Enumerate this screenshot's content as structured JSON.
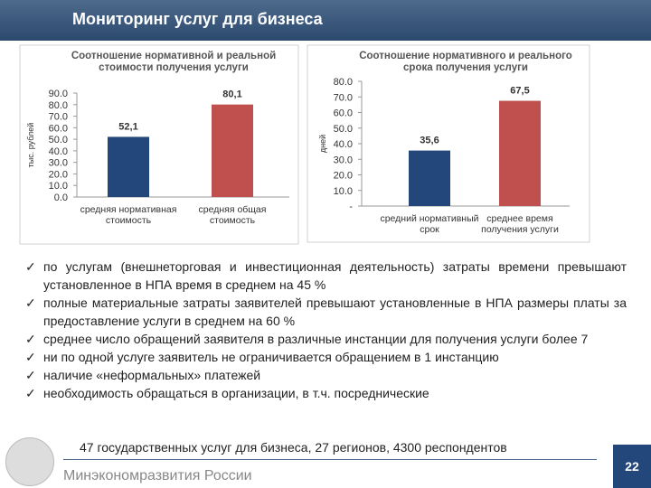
{
  "header": {
    "title": "Мониторинг услуг для бизнеса"
  },
  "chart_data": [
    {
      "type": "bar",
      "title": "Соотношение нормативной и реальной стоимости получения услуги",
      "ylabel": "тыс. рублей",
      "categories": [
        "средняя нормативная стоимость",
        "средняя общая стоимость"
      ],
      "values": [
        52.1,
        80.1
      ],
      "value_labels": [
        "52,1",
        "80,1"
      ],
      "colors": [
        "#23477a",
        "#c0504d"
      ],
      "ylim": [
        0,
        90
      ],
      "yticks": [
        {
          "value": 0,
          "label": "0.0"
        },
        {
          "value": 10,
          "label": "10.0"
        },
        {
          "value": 20,
          "label": "20.0"
        },
        {
          "value": 30,
          "label": "30.0"
        },
        {
          "value": 40,
          "label": "40.0"
        },
        {
          "value": 50,
          "label": "50.0"
        },
        {
          "value": 60,
          "label": "60.0"
        },
        {
          "value": 70,
          "label": "70.0"
        },
        {
          "value": 80,
          "label": "80.0"
        },
        {
          "value": 90,
          "label": "90.0"
        }
      ]
    },
    {
      "type": "bar",
      "title": "Соотношение нормативного и реального срока получения услуги",
      "ylabel": "дней",
      "categories": [
        "средний нормативный срок",
        "среднее время получения услуги"
      ],
      "values": [
        35.6,
        67.5
      ],
      "value_labels": [
        "35,6",
        "67,5"
      ],
      "colors": [
        "#23477a",
        "#c0504d"
      ],
      "ylim": [
        0,
        80
      ],
      "yticks": [
        {
          "value": 0,
          "label": "-"
        },
        {
          "value": 10,
          "label": "10.0"
        },
        {
          "value": 20,
          "label": "20.0"
        },
        {
          "value": 30,
          "label": "30.0"
        },
        {
          "value": 40,
          "label": "40.0"
        },
        {
          "value": 50,
          "label": "50.0"
        },
        {
          "value": 60,
          "label": "60.0"
        },
        {
          "value": 70,
          "label": "70.0"
        },
        {
          "value": 80,
          "label": "80.0"
        }
      ]
    }
  ],
  "bullets": [
    "по услугам (внешнеторговая и инвестиционная деятельность) затраты времени превышают установленное в НПА время в среднем на 45 %",
    "полные материальные затраты заявителей превышают установленные в НПА размеры платы за предоставление услуги в среднем на 60 %",
    "среднее число обращений заявителя в различные инстанции для получения услуги более 7",
    "ни по одной услуге заявитель не ограничивается обращением в 1 инстанцию",
    "наличие «неформальных» платежей",
    "необходимость обращаться в организации, в т.ч. посреднические"
  ],
  "footer": {
    "summary": "47 государственных услуг для бизнеса, 27 регионов, 4300 респондентов",
    "ministry": "Минэкономразвития России",
    "page": "22"
  }
}
